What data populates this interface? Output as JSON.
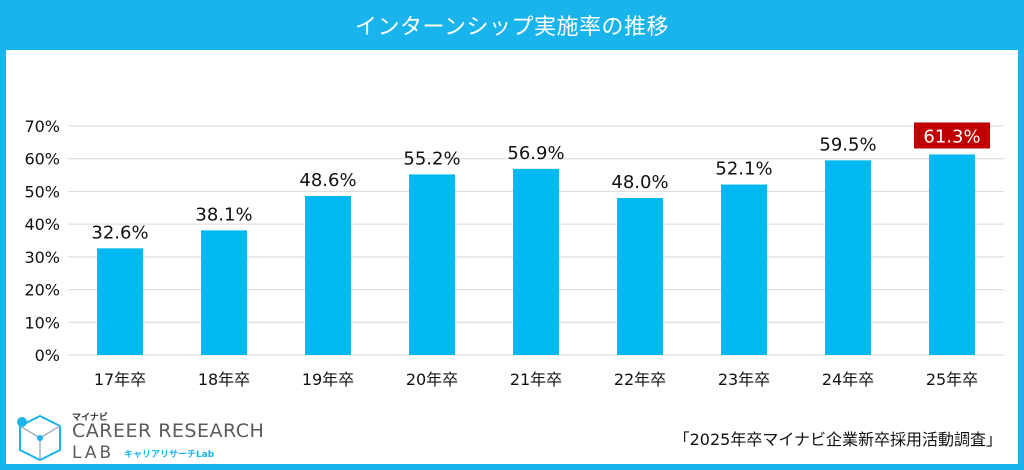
{
  "header": {
    "title": "インターンシップ実施率の推移"
  },
  "chart_data": {
    "type": "bar",
    "title": "インターンシップ実施率の推移",
    "categories": [
      "17年卒",
      "18年卒",
      "19年卒",
      "20年卒",
      "21年卒",
      "22年卒",
      "23年卒",
      "24年卒",
      "25年卒"
    ],
    "values": [
      32.6,
      38.1,
      48.6,
      55.2,
      56.9,
      48.0,
      52.1,
      59.5,
      61.3
    ],
    "value_labels": [
      "32.6%",
      "38.1%",
      "48.6%",
      "55.2%",
      "56.9%",
      "48.0%",
      "52.1%",
      "59.5%",
      "61.3%"
    ],
    "y_ticks": [
      0,
      10,
      20,
      30,
      40,
      50,
      60,
      70
    ],
    "y_tick_labels": [
      "0%",
      "10%",
      "20%",
      "30%",
      "40%",
      "50%",
      "60%",
      "70%"
    ],
    "ylim": [
      0,
      70
    ],
    "xlabel": "",
    "ylabel": "",
    "grid": true,
    "highlight_index": 8,
    "bar_color": "#00b9f2",
    "highlight_label_bg": "#c00000"
  },
  "footer": {
    "source": "「2025年卒マイナビ企業新卒採用活動調査」",
    "logo": {
      "small": "マイナビ",
      "main": "CAREER RESEARCH",
      "lab": "LAB",
      "sub": "キャリアリサーチLab"
    }
  },
  "colors": {
    "accent": "#1ab4ec",
    "grid": "#d9d9d9"
  }
}
